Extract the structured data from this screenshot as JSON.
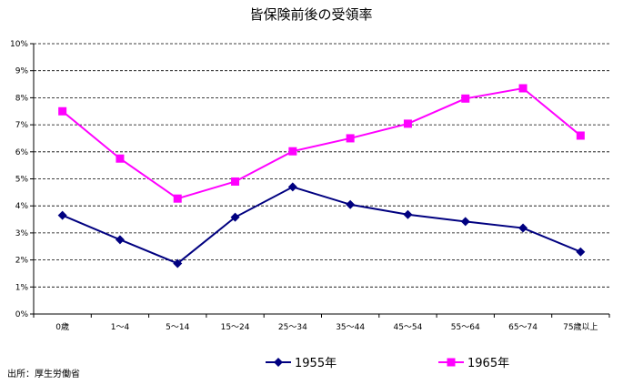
{
  "chart_data": {
    "type": "line",
    "title": "皆保険前後の受領率",
    "categories": [
      "0歳",
      "1～4",
      "5～14",
      "15～24",
      "25～34",
      "35～44",
      "45～54",
      "55～64",
      "65～74",
      "75歳以上"
    ],
    "y_ticks": [
      "0%",
      "1%",
      "2%",
      "3%",
      "4%",
      "5%",
      "6%",
      "7%",
      "8%",
      "9%",
      "10%"
    ],
    "ylim": [
      0,
      10
    ],
    "y_unit": "%",
    "grid": true,
    "legend_position": "bottom",
    "series": [
      {
        "name": "1955年",
        "color": "#000080",
        "marker": "diamond",
        "values": [
          3.65,
          2.75,
          1.87,
          3.58,
          4.7,
          4.05,
          3.68,
          3.42,
          3.18,
          2.3
        ]
      },
      {
        "name": "1965年",
        "color": "#ff00ff",
        "marker": "square",
        "values": [
          7.5,
          5.75,
          4.27,
          4.9,
          6.02,
          6.5,
          7.04,
          7.97,
          8.35,
          6.6
        ]
      }
    ]
  },
  "source_note": "出所：厚生労働省"
}
